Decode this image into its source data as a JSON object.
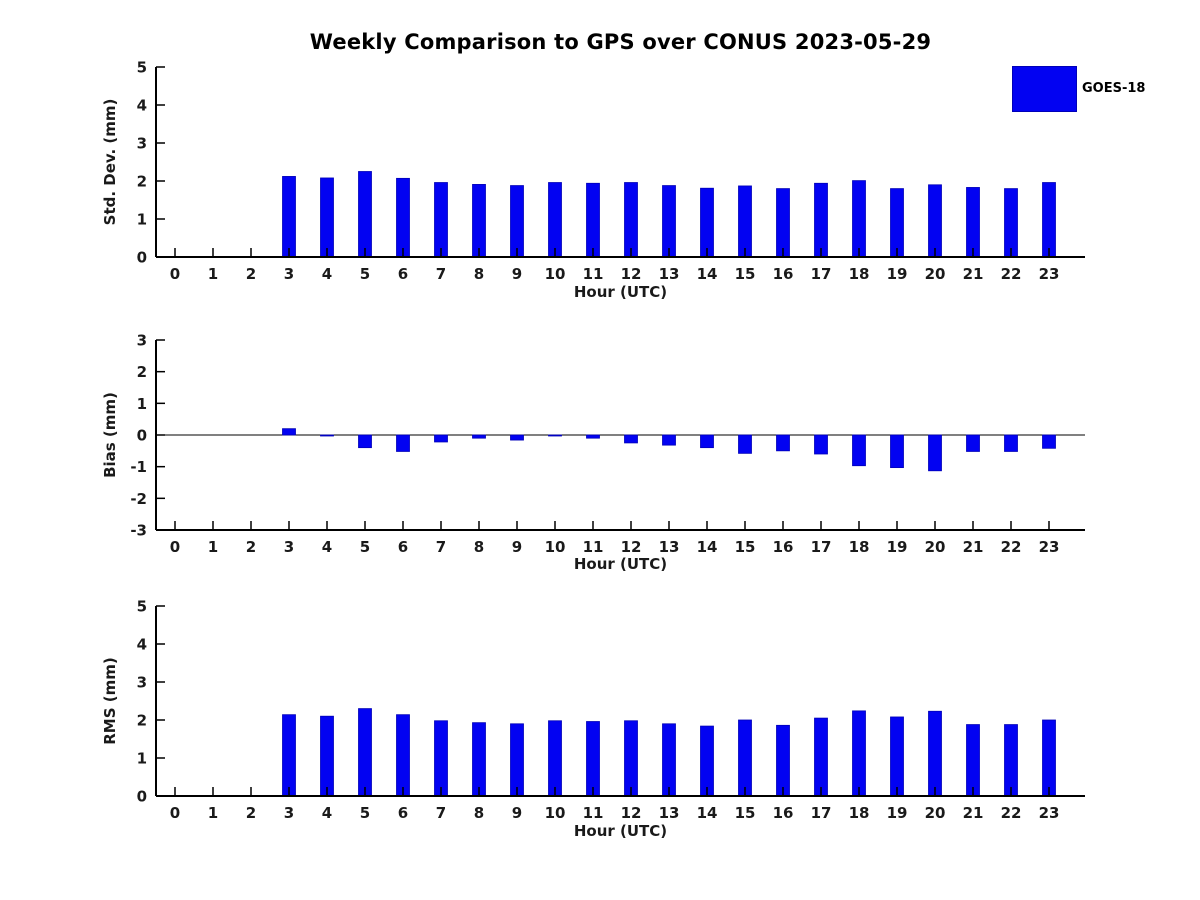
{
  "title": "Weekly Comparison to GPS over CONUS 2023-05-29",
  "legend": {
    "label": "GOES-18"
  },
  "colors": {
    "bar": "#0202f2",
    "bar_edge": "#0000b8",
    "axis": "#000000",
    "text": "#1a1a1a",
    "background": "#ffffff"
  },
  "chart_data": [
    {
      "id": "std_dev",
      "type": "bar",
      "series_name": "GOES-18",
      "ylabel": "Std. Dev. (mm)",
      "xlabel": "Hour (UTC)",
      "ylim": [
        0,
        5
      ],
      "yticks": [
        0,
        1,
        2,
        3,
        4,
        5
      ],
      "categories": [
        0,
        1,
        2,
        3,
        4,
        5,
        6,
        7,
        8,
        9,
        10,
        11,
        12,
        13,
        14,
        15,
        16,
        17,
        18,
        19,
        20,
        21,
        22,
        23
      ],
      "values": [
        null,
        null,
        null,
        2.12,
        2.08,
        2.25,
        2.07,
        1.96,
        1.91,
        1.88,
        1.96,
        1.94,
        1.96,
        1.88,
        1.81,
        1.87,
        1.8,
        1.94,
        2.01,
        1.8,
        1.9,
        1.83,
        1.8,
        1.96
      ],
      "grid": false,
      "legend_position": "upper-right-outside"
    },
    {
      "id": "bias",
      "type": "bar",
      "series_name": "GOES-18",
      "ylabel": "Bias (mm)",
      "xlabel": "Hour (UTC)",
      "ylim": [
        -3,
        3
      ],
      "yticks": [
        -3,
        -2,
        -1,
        0,
        1,
        2,
        3
      ],
      "categories": [
        0,
        1,
        2,
        3,
        4,
        5,
        6,
        7,
        8,
        9,
        10,
        11,
        12,
        13,
        14,
        15,
        16,
        17,
        18,
        19,
        20,
        21,
        22,
        23
      ],
      "values": [
        null,
        null,
        null,
        0.2,
        -0.03,
        -0.4,
        -0.52,
        -0.22,
        -0.1,
        -0.16,
        -0.03,
        -0.1,
        -0.25,
        -0.32,
        -0.4,
        -0.58,
        -0.5,
        -0.6,
        -0.97,
        -1.03,
        -1.13,
        -0.52,
        -0.52,
        -0.42
      ],
      "grid": false,
      "zero_line": true
    },
    {
      "id": "rms",
      "type": "bar",
      "series_name": "GOES-18",
      "ylabel": "RMS (mm)",
      "xlabel": "Hour (UTC)",
      "ylim": [
        0,
        5
      ],
      "yticks": [
        0,
        1,
        2,
        3,
        4,
        5
      ],
      "categories": [
        0,
        1,
        2,
        3,
        4,
        5,
        6,
        7,
        8,
        9,
        10,
        11,
        12,
        13,
        14,
        15,
        16,
        17,
        18,
        19,
        20,
        21,
        22,
        23
      ],
      "values": [
        null,
        null,
        null,
        2.14,
        2.1,
        2.3,
        2.14,
        1.98,
        1.93,
        1.9,
        1.98,
        1.96,
        1.98,
        1.9,
        1.84,
        2.0,
        1.86,
        2.05,
        2.24,
        2.08,
        2.23,
        1.88,
        1.88,
        2.0
      ],
      "grid": false
    }
  ]
}
